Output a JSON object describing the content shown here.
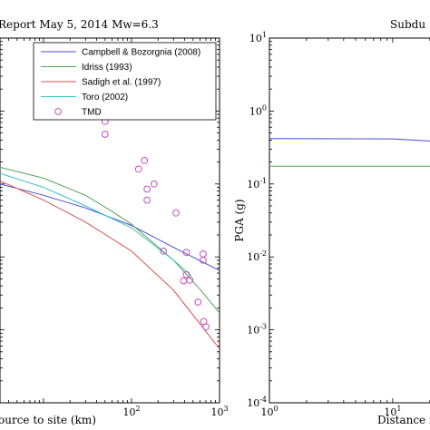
{
  "chart_data": [
    {
      "type": "line",
      "title": "Report May 5, 2014 Mw=6.3",
      "xlabel": "ource to site (km)",
      "ylabel": "",
      "xscale": "log",
      "yscale": "log",
      "xlim": [
        3.2,
        1000
      ],
      "ylim": [
        0.0001,
        10
      ],
      "xticks": [
        {
          "base": "10",
          "exp": "2",
          "value": 100
        },
        {
          "base": "10",
          "exp": "3",
          "value": 1000
        }
      ],
      "legend_placement": "top-right",
      "grid": false,
      "series": [
        {
          "name": "Campbell & Bozorgnia (2008)",
          "kind": "line",
          "color": "#4b4bcf",
          "x": [
            3.2,
            10,
            30,
            100,
            300,
            1000
          ],
          "y": [
            0.1,
            0.07,
            0.047,
            0.027,
            0.0135,
            0.0065
          ]
        },
        {
          "name": "Idriss (1993)",
          "kind": "line",
          "color": "#5aa05a",
          "x": [
            3.2,
            10,
            30,
            60,
            100,
            300,
            600,
            1000
          ],
          "y": [
            0.17,
            0.12,
            0.07,
            0.042,
            0.028,
            0.009,
            0.0036,
            0.0017
          ]
        },
        {
          "name": "Sadigh et al. (1997)",
          "kind": "line",
          "color": "#d9534f",
          "x": [
            3.2,
            10,
            30,
            100,
            300,
            1000
          ],
          "y": [
            0.11,
            0.06,
            0.03,
            0.012,
            0.0035,
            0.00055
          ]
        },
        {
          "name": "Toro (2002)",
          "kind": "line",
          "color": "#3ec6c6",
          "x": [
            3.2,
            10,
            30,
            100,
            300,
            480
          ],
          "y": [
            0.14,
            0.09,
            0.05,
            0.025,
            0.009,
            0.0055
          ]
        },
        {
          "name": "TMD",
          "kind": "marker",
          "color": "#c24fc2",
          "x": [
            50,
            50,
            120,
            140,
            150,
            150,
            180,
            230,
            320,
            390,
            420,
            420,
            460,
            570,
            650,
            650,
            660,
            700
          ],
          "y": [
            0.72,
            0.48,
            0.16,
            0.21,
            0.085,
            0.06,
            0.1,
            0.012,
            0.04,
            0.0047,
            0.0115,
            0.0057,
            0.0048,
            0.0024,
            0.011,
            0.009,
            0.0013,
            0.0011
          ]
        }
      ]
    },
    {
      "type": "line",
      "title": "Subdu",
      "xlabel": "Distance f",
      "ylabel": "PGA (g)",
      "xscale": "log",
      "yscale": "log",
      "xlim": [
        1,
        25
      ],
      "ylim": [
        0.0001,
        10
      ],
      "xticks": [
        {
          "base": "10",
          "exp": "0",
          "value": 1
        },
        {
          "base": "10",
          "exp": "1",
          "value": 10
        }
      ],
      "yticks": [
        {
          "base": "10",
          "exp": "1",
          "value": 10
        },
        {
          "base": "10",
          "exp": "0",
          "value": 1
        },
        {
          "base": "10",
          "exp": "-1",
          "value": 0.1
        },
        {
          "base": "10",
          "exp": "-2",
          "value": 0.01
        },
        {
          "base": "10",
          "exp": "-3",
          "value": 0.001
        },
        {
          "base": "10",
          "exp": "-4",
          "value": 0.0001
        }
      ],
      "grid": false,
      "series": [
        {
          "kind": "line",
          "color": "#4b4bcf",
          "x": [
            1,
            10,
            25
          ],
          "y": [
            0.42,
            0.415,
            0.38
          ]
        },
        {
          "kind": "line",
          "color": "#5aa05a",
          "x": [
            1,
            10,
            25
          ],
          "y": [
            0.175,
            0.175,
            0.175
          ]
        }
      ]
    }
  ]
}
